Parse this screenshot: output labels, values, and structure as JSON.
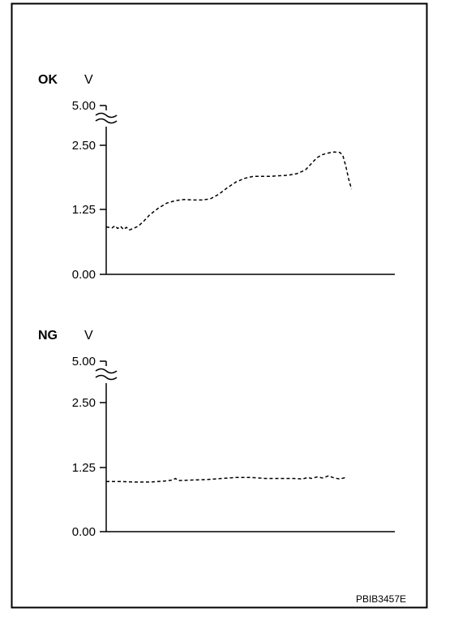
{
  "figure_code": "PBIB3457E",
  "chart_data": [
    {
      "type": "line",
      "label": "OK",
      "ylabel": "V",
      "yticks": [
        "5.00",
        "2.50",
        "1.25",
        "0.00"
      ],
      "axis_break": "between 2.50 and 5.00",
      "ylim": [
        0,
        5.0
      ],
      "x_label": "",
      "line_style": "dashed",
      "series": [
        {
          "points": [
            [
              0.0,
              0.92
            ],
            [
              0.02,
              0.9
            ],
            [
              0.03,
              0.94
            ],
            [
              0.04,
              0.89
            ],
            [
              0.05,
              0.93
            ],
            [
              0.06,
              0.87
            ],
            [
              0.07,
              0.91
            ],
            [
              0.08,
              0.86
            ],
            [
              0.09,
              0.88
            ],
            [
              0.11,
              0.93
            ],
            [
              0.13,
              1.03
            ],
            [
              0.15,
              1.15
            ],
            [
              0.18,
              1.28
            ],
            [
              0.21,
              1.38
            ],
            [
              0.24,
              1.43
            ],
            [
              0.27,
              1.45
            ],
            [
              0.3,
              1.44
            ],
            [
              0.33,
              1.44
            ],
            [
              0.36,
              1.46
            ],
            [
              0.39,
              1.55
            ],
            [
              0.42,
              1.68
            ],
            [
              0.45,
              1.79
            ],
            [
              0.48,
              1.86
            ],
            [
              0.51,
              1.9
            ],
            [
              0.54,
              1.9
            ],
            [
              0.57,
              1.9
            ],
            [
              0.6,
              1.91
            ],
            [
              0.63,
              1.92
            ],
            [
              0.66,
              1.95
            ],
            [
              0.69,
              2.02
            ],
            [
              0.71,
              2.14
            ],
            [
              0.73,
              2.26
            ],
            [
              0.75,
              2.32
            ],
            [
              0.77,
              2.35
            ],
            [
              0.79,
              2.37
            ],
            [
              0.81,
              2.36
            ],
            [
              0.82,
              2.3
            ],
            [
              0.83,
              2.1
            ],
            [
              0.84,
              1.85
            ],
            [
              0.85,
              1.65
            ]
          ]
        }
      ]
    },
    {
      "type": "line",
      "label": "NG",
      "ylabel": "V",
      "yticks": [
        "5.00",
        "2.50",
        "1.25",
        "0.00"
      ],
      "axis_break": "between 2.50 and 5.00",
      "ylim": [
        0,
        5.0
      ],
      "x_label": "",
      "line_style": "dashed",
      "series": [
        {
          "points": [
            [
              0.0,
              0.97
            ],
            [
              0.05,
              0.97
            ],
            [
              0.1,
              0.96
            ],
            [
              0.15,
              0.96
            ],
            [
              0.2,
              0.98
            ],
            [
              0.23,
              1.0
            ],
            [
              0.24,
              1.03
            ],
            [
              0.25,
              0.99
            ],
            [
              0.3,
              1.0
            ],
            [
              0.35,
              1.01
            ],
            [
              0.4,
              1.03
            ],
            [
              0.45,
              1.05
            ],
            [
              0.5,
              1.05
            ],
            [
              0.55,
              1.03
            ],
            [
              0.6,
              1.03
            ],
            [
              0.65,
              1.03
            ],
            [
              0.68,
              1.02
            ],
            [
              0.7,
              1.05
            ],
            [
              0.71,
              1.03
            ],
            [
              0.73,
              1.06
            ],
            [
              0.75,
              1.04
            ],
            [
              0.77,
              1.08
            ],
            [
              0.79,
              1.04
            ],
            [
              0.81,
              1.02
            ],
            [
              0.83,
              1.05
            ]
          ]
        }
      ]
    }
  ]
}
